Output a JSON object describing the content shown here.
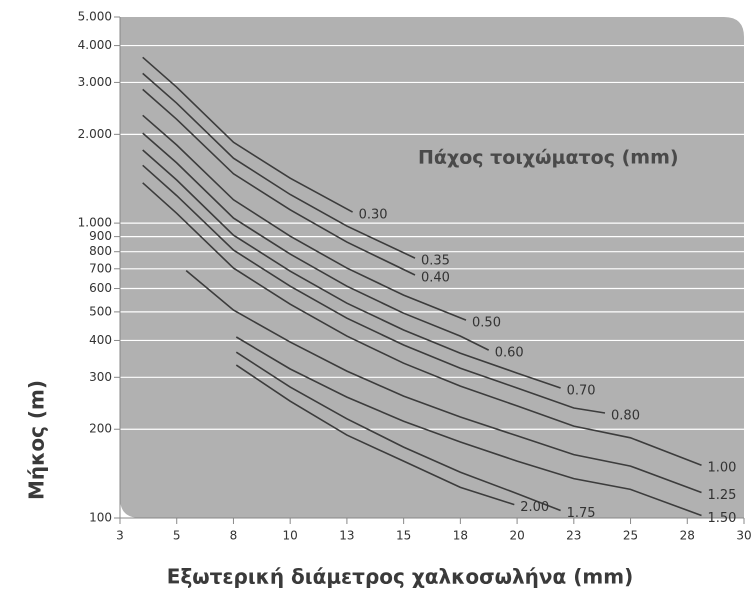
{
  "chart_data": {
    "type": "line",
    "annotation": "Πάχος τοιχώματος (mm)",
    "x_label": "Εξωτερική διάμετρος χαλκοσωλήνα (mm)",
    "y_label": "Μήκος (m)",
    "xlim": [
      3,
      30
    ],
    "xticks": [
      3,
      5,
      8,
      10,
      13,
      15,
      18,
      20,
      23,
      25,
      28,
      30
    ],
    "ylim": [
      100,
      5000
    ],
    "yscale": "log",
    "yticks": [
      100,
      200,
      300,
      400,
      500,
      600,
      700,
      800,
      900,
      {
        "value": 1000,
        "label": "1.000"
      },
      {
        "value": 2000,
        "label": "2.000"
      },
      {
        "value": 3000,
        "label": "3.000"
      },
      {
        "value": 4000,
        "label": "4.000"
      },
      {
        "value": 5000,
        "label": "5.000"
      }
    ],
    "grid": true,
    "series": [
      {
        "name": "0.30",
        "color": "#3c3c3c",
        "x": [
          3.8,
          5,
          8,
          10,
          13.2
        ],
        "values": [
          3650,
          2890,
          1880,
          1420,
          1090
        ]
      },
      {
        "name": "0.35",
        "color": "#3c3c3c",
        "x": [
          3.8,
          5,
          8,
          10,
          13,
          15.6
        ],
        "values": [
          3220,
          2550,
          1660,
          1250,
          977,
          761
        ]
      },
      {
        "name": "0.40",
        "color": "#3c3c3c",
        "x": [
          3.8,
          5,
          8,
          10,
          13,
          15.6
        ],
        "values": [
          2840,
          2250,
          1470,
          1110,
          862,
          667
        ]
      },
      {
        "name": "0.50",
        "color": "#3c3c3c",
        "x": [
          3.8,
          5,
          8,
          10,
          13,
          15,
          18.2
        ],
        "values": [
          2320,
          1840,
          1200,
          903,
          704,
          570,
          469
        ]
      },
      {
        "name": "0.60",
        "color": "#3c3c3c",
        "x": [
          3.8,
          5,
          8,
          10,
          13,
          15,
          18,
          19
        ],
        "values": [
          2020,
          1600,
          1040,
          785,
          611,
          495,
          414,
          371
        ]
      },
      {
        "name": "0.70",
        "color": "#3c3c3c",
        "x": [
          3.8,
          5,
          8,
          10,
          13,
          15,
          18,
          20,
          22.3
        ],
        "values": [
          1770,
          1400,
          910,
          687,
          535,
          434,
          362,
          310,
          276
        ]
      },
      {
        "name": "0.80",
        "color": "#3c3c3c",
        "x": [
          3.8,
          5,
          8,
          10,
          13,
          15,
          18,
          20,
          23,
          24.1
        ],
        "values": [
          1570,
          1240,
          810,
          611,
          476,
          386,
          322,
          276,
          236,
          227
        ]
      },
      {
        "name": "1.00",
        "color": "#3c3c3c",
        "x": [
          3.8,
          5,
          8,
          10,
          13,
          15,
          18,
          20,
          23,
          25,
          28.5
        ],
        "values": [
          1370,
          1080,
          704,
          531,
          414,
          335,
          280,
          240,
          205,
          187,
          151
        ]
      },
      {
        "name": "1.25",
        "color": "#3c3c3c",
        "x": [
          5.5,
          8,
          10,
          13,
          15,
          18,
          20,
          23,
          25,
          28.5
        ],
        "values": [
          690,
          507,
          395,
          315,
          259,
          220,
          190,
          164,
          150,
          122
        ]
      },
      {
        "name": "1.50",
        "color": "#3c3c3c",
        "x": [
          8.1,
          10,
          13,
          15,
          18,
          20,
          23,
          25,
          28.5
        ],
        "values": [
          411,
          320,
          257,
          213,
          181,
          156,
          136,
          125,
          102
        ]
      },
      {
        "name": "1.75",
        "color": "#3c3c3c",
        "x": [
          8.1,
          10,
          13,
          15,
          18,
          20,
          22.3
        ],
        "values": [
          365,
          278,
          217,
          174,
          143,
          121,
          106
        ]
      },
      {
        "name": "2.00",
        "color": "#3c3c3c",
        "x": [
          8.1,
          10,
          13,
          15,
          18,
          19.9
        ],
        "values": [
          330,
          249,
          191,
          156,
          127,
          111
        ]
      }
    ]
  }
}
